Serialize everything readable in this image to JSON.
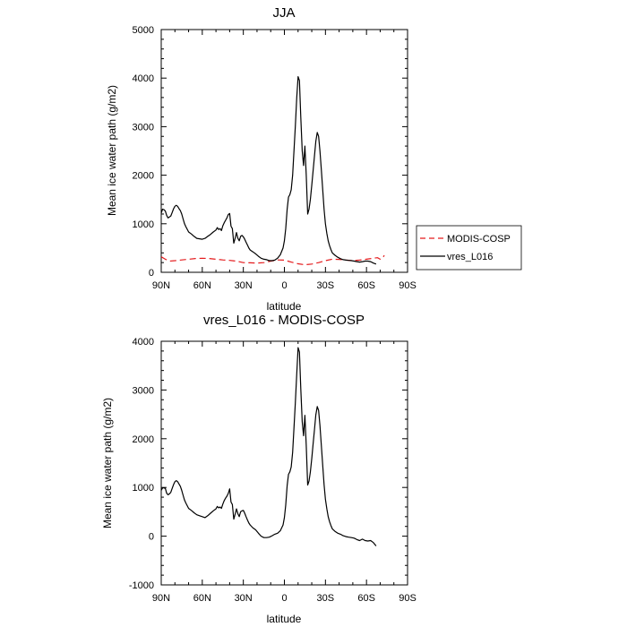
{
  "chart_data": [
    {
      "type": "line",
      "title": "JJA",
      "xlabel": "latitude",
      "ylabel": "Mean ice water path (g/m2)",
      "xlim": [
        90,
        -90
      ],
      "ylim": [
        0,
        5000
      ],
      "xticks": [
        {
          "value": 90,
          "label": "90N"
        },
        {
          "value": 60,
          "label": "60N"
        },
        {
          "value": 30,
          "label": "30N"
        },
        {
          "value": 0,
          "label": "0"
        },
        {
          "value": -30,
          "label": "30S"
        },
        {
          "value": -60,
          "label": "60S"
        },
        {
          "value": -90,
          "label": "90S"
        }
      ],
      "yticks": [
        0,
        1000,
        2000,
        3000,
        4000,
        5000
      ],
      "series": [
        {
          "name": "MODIS-COSP",
          "color": "#e41a1c",
          "dash": "dashed",
          "x": [
            90,
            87,
            84,
            80,
            75,
            70,
            65,
            60,
            55,
            50,
            45,
            40,
            35,
            30,
            25,
            20,
            15,
            10,
            5,
            0,
            -5,
            -10,
            -15,
            -20,
            -25,
            -30,
            -35,
            -40,
            -45,
            -50,
            -55,
            -60,
            -65,
            -68,
            -70,
            -72,
            -73
          ],
          "y": [
            320,
            270,
            230,
            240,
            255,
            270,
            285,
            290,
            285,
            270,
            255,
            245,
            230,
            200,
            195,
            190,
            200,
            230,
            255,
            250,
            210,
            175,
            155,
            170,
            200,
            240,
            270,
            265,
            250,
            240,
            250,
            270,
            290,
            300,
            270,
            300,
            350
          ]
        },
        {
          "name": "vres_L016",
          "color": "#000000",
          "dash": "solid",
          "x": [
            90,
            89,
            88,
            87,
            86,
            85,
            84,
            83,
            82,
            81,
            80,
            79,
            78,
            77,
            76,
            75,
            74,
            73,
            72,
            70,
            68,
            66,
            64,
            62,
            60,
            58,
            56,
            54,
            52,
            50,
            49,
            48,
            47,
            46,
            45,
            44,
            43,
            42,
            41,
            40,
            39,
            38,
            37,
            36,
            35,
            34,
            33,
            32,
            31,
            30,
            29,
            28,
            27,
            26,
            25,
            23,
            21,
            19,
            17,
            15,
            13,
            11,
            9,
            7,
            5,
            3,
            1,
            0,
            -1,
            -2,
            -3,
            -4,
            -5,
            -6,
            -7,
            -8,
            -9,
            -10,
            -11,
            -12,
            -13,
            -14,
            -15,
            -16,
            -17,
            -18,
            -19,
            -20,
            -21,
            -22,
            -23,
            -24,
            -25,
            -26,
            -27,
            -28,
            -29,
            -30,
            -31,
            -32,
            -33,
            -34,
            -35,
            -37,
            -39,
            -41,
            -43,
            -45,
            -47,
            -49,
            -51,
            -53,
            -55,
            -57,
            -59,
            -61,
            -63,
            -65,
            -67
          ],
          "y": [
            1220,
            1300,
            1290,
            1260,
            1170,
            1120,
            1140,
            1160,
            1230,
            1310,
            1360,
            1380,
            1360,
            1310,
            1270,
            1200,
            1100,
            1000,
            940,
            830,
            790,
            740,
            700,
            690,
            680,
            700,
            740,
            780,
            830,
            870,
            920,
            880,
            900,
            860,
            960,
            1020,
            1070,
            1120,
            1190,
            1210,
            950,
            900,
            600,
            700,
            820,
            700,
            650,
            740,
            760,
            730,
            680,
            620,
            560,
            500,
            460,
            420,
            380,
            330,
            290,
            270,
            260,
            240,
            240,
            250,
            290,
            360,
            500,
            650,
            900,
            1300,
            1550,
            1600,
            1700,
            2000,
            2500,
            3000,
            3600,
            4030,
            3950,
            3200,
            2500,
            2200,
            2600,
            2000,
            1200,
            1300,
            1500,
            1800,
            2100,
            2400,
            2700,
            2880,
            2800,
            2500,
            2100,
            1700,
            1300,
            1000,
            800,
            650,
            550,
            470,
            400,
            350,
            310,
            280,
            260,
            250,
            245,
            240,
            230,
            220,
            210,
            220,
            230,
            230,
            220,
            190,
            170
          ]
        }
      ],
      "legend": [
        {
          "label": "MODIS-COSP",
          "color": "#e41a1c",
          "dash": "dashed"
        },
        {
          "label": "vres_L016",
          "color": "#000000",
          "dash": "solid"
        }
      ]
    },
    {
      "type": "line",
      "title": "vres_L016 - MODIS-COSP",
      "xlabel": "latitude",
      "ylabel": "Mean ice water path (g/m2)",
      "xlim": [
        90,
        -90
      ],
      "ylim": [
        -1000,
        4000
      ],
      "xticks": [
        {
          "value": 90,
          "label": "90N"
        },
        {
          "value": 60,
          "label": "60N"
        },
        {
          "value": 30,
          "label": "30N"
        },
        {
          "value": 0,
          "label": "0"
        },
        {
          "value": -30,
          "label": "30S"
        },
        {
          "value": -60,
          "label": "60S"
        },
        {
          "value": -90,
          "label": "90S"
        }
      ],
      "yticks": [
        -1000,
        0,
        1000,
        2000,
        3000,
        4000
      ],
      "series": [
        {
          "name": "vres_L016 - MODIS-COSP",
          "color": "#000000",
          "dash": "solid",
          "x": [
            90,
            89,
            88,
            87,
            86,
            85,
            84,
            83,
            82,
            81,
            80,
            79,
            78,
            77,
            76,
            75,
            74,
            73,
            72,
            70,
            68,
            66,
            64,
            62,
            60,
            58,
            56,
            54,
            52,
            50,
            49,
            48,
            47,
            46,
            45,
            44,
            43,
            42,
            41,
            40,
            39,
            38,
            37,
            36,
            35,
            34,
            33,
            32,
            31,
            30,
            29,
            28,
            27,
            26,
            25,
            23,
            21,
            19,
            17,
            15,
            13,
            11,
            9,
            7,
            5,
            3,
            1,
            0,
            -1,
            -2,
            -3,
            -4,
            -5,
            -6,
            -7,
            -8,
            -9,
            -10,
            -11,
            -12,
            -13,
            -14,
            -15,
            -16,
            -17,
            -18,
            -19,
            -20,
            -21,
            -22,
            -23,
            -24,
            -25,
            -26,
            -27,
            -28,
            -29,
            -30,
            -31,
            -32,
            -33,
            -34,
            -35,
            -37,
            -39,
            -41,
            -43,
            -45,
            -47,
            -49,
            -51,
            -53,
            -55,
            -57,
            -59,
            -61,
            -63,
            -65,
            -67
          ],
          "y": [
            940,
            990,
            990,
            980,
            880,
            850,
            870,
            900,
            980,
            1060,
            1120,
            1140,
            1120,
            1070,
            1020,
            940,
            840,
            740,
            680,
            570,
            530,
            480,
            440,
            420,
            400,
            380,
            420,
            470,
            520,
            560,
            610,
            580,
            600,
            570,
            660,
            730,
            780,
            820,
            880,
            970,
            700,
            650,
            350,
            450,
            560,
            460,
            400,
            500,
            520,
            530,
            470,
            400,
            330,
            270,
            230,
            170,
            130,
            60,
            0,
            -30,
            -30,
            -20,
            10,
            40,
            60,
            110,
            230,
            380,
            640,
            1040,
            1270,
            1320,
            1420,
            1720,
            2220,
            2730,
            3330,
            3870,
            3780,
            3030,
            2350,
            2060,
            2480,
            1860,
            1050,
            1130,
            1320,
            1600,
            1900,
            2190,
            2490,
            2660,
            2580,
            2270,
            1850,
            1450,
            1060,
            760,
            560,
            400,
            300,
            220,
            150,
            100,
            60,
            40,
            10,
            -10,
            -20,
            -30,
            -40,
            -70,
            -90,
            -60,
            -90,
            -100,
            -90,
            -130,
            -200
          ]
        }
      ]
    }
  ]
}
